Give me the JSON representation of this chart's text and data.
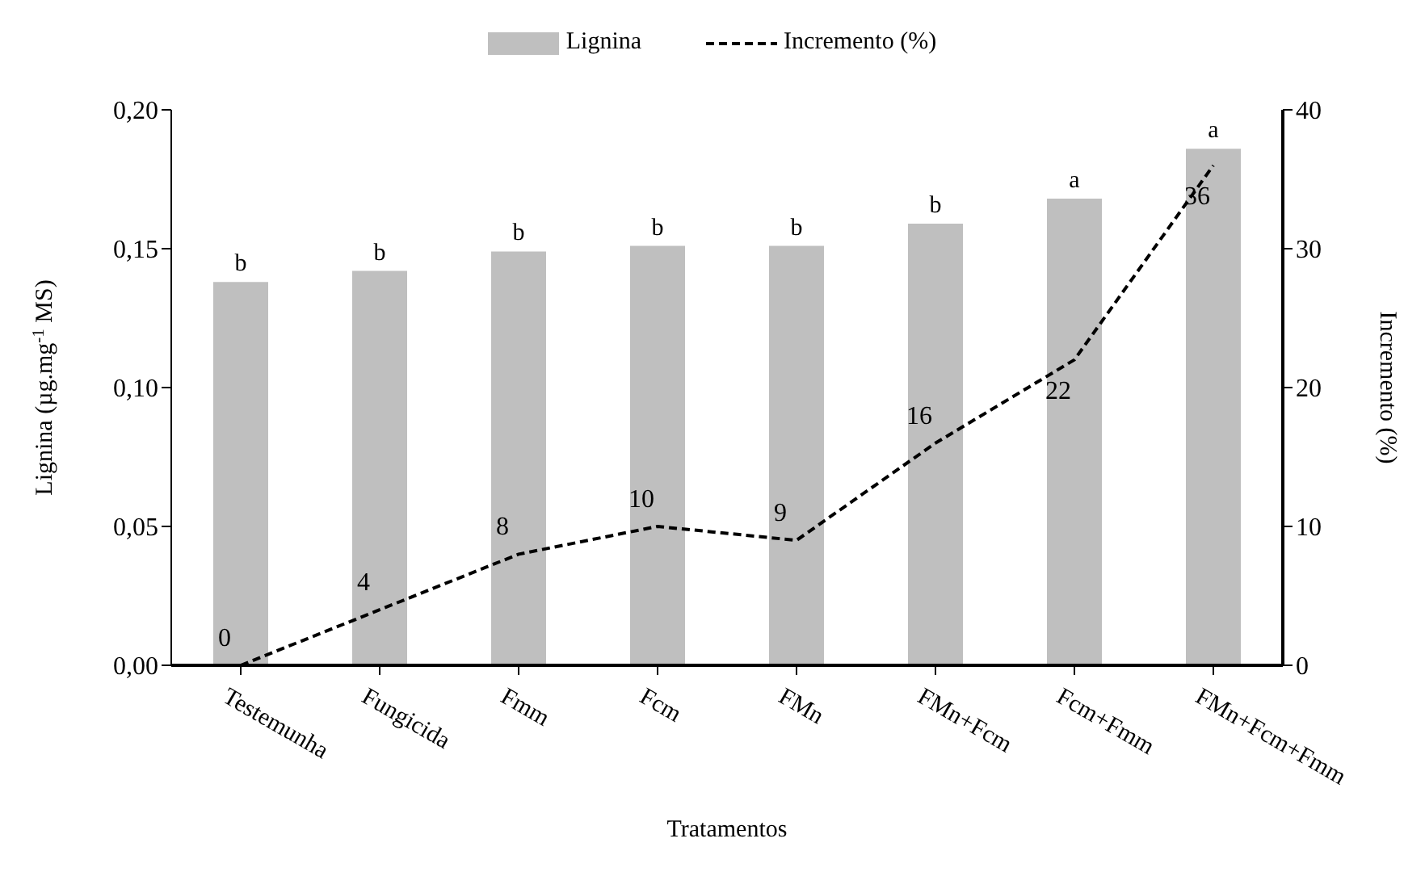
{
  "chart_data": {
    "type": "bar",
    "xlabel": "Tratamentos",
    "ylabel": "Lignina (µg.mg$^{-1}$ MS)",
    "y2label": "Incremento (%)",
    "categories": [
      "Testemunha",
      "Fungicida",
      "Fmm",
      "Fcm",
      "FMn",
      "FMn+Fcm",
      "Fcm+Fmm",
      "FMn+Fcm+Fmm"
    ],
    "series": [
      {
        "name": "Lignina",
        "type": "bar",
        "color": "#bfbfbf",
        "values": [
          0.138,
          0.142,
          0.149,
          0.151,
          0.151,
          0.159,
          0.168,
          0.186
        ],
        "value_labels": [
          "b",
          "b",
          "b",
          "b",
          "b",
          "b",
          "a",
          "a"
        ]
      },
      {
        "name": "Incremento (%)",
        "type": "line",
        "axis": "y2",
        "color": "#000000",
        "line_style": "dashed",
        "marker": "none",
        "data_labels": true,
        "values": [
          0,
          4,
          8,
          10,
          9,
          16,
          22,
          36
        ]
      }
    ],
    "ylim": [
      0,
      0.2
    ],
    "yticks": [
      {
        "value": 0,
        "label": "0,00"
      },
      {
        "value": 0.05,
        "label": "0,05"
      },
      {
        "value": 0.1,
        "label": "0,10"
      },
      {
        "value": 0.15,
        "label": "0,15"
      },
      {
        "value": 0.2,
        "label": "0,20"
      }
    ],
    "y2lim": [
      0,
      40
    ],
    "y2ticks": [
      0,
      10,
      20,
      30,
      40
    ],
    "grid": false,
    "legend": "top"
  }
}
